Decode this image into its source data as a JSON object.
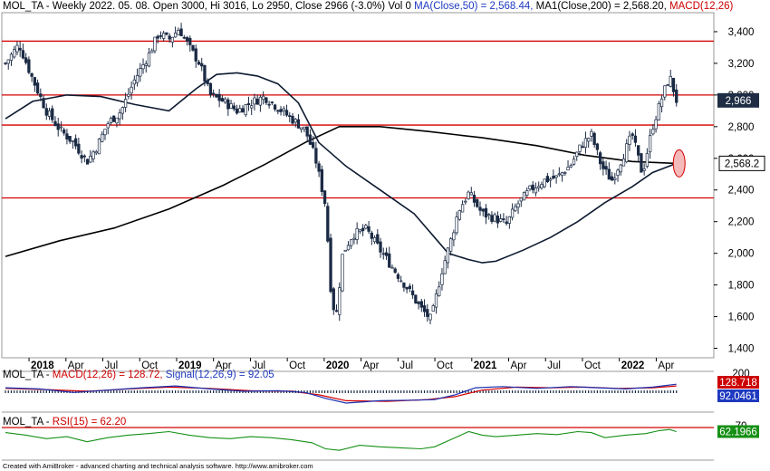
{
  "header": {
    "symbol": "MOL_TA",
    "info": " - Weekly 2022. 05. 08. Open 3000, Hi 3016, Lo 2950, Close 2966 (-3.0%) Vol 0 ",
    "ma50": "MA(Close,50) = 2,568.44, ",
    "ma200": "MA1(Close,200) = 2,568.20, ",
    "macd": "MACD(12,26)"
  },
  "colors": {
    "candle": "#1b2a44",
    "ma50": "#0d1a30",
    "ma200": "#000000",
    "hline": "#d40000",
    "macd_line": "#1a2fb0",
    "signal_line": "#d40000",
    "rsi_line": "#159015",
    "label_dark": "#1e2d44",
    "label_red": "#cc0000",
    "label_blue": "#1f3ac0",
    "label_green": "#159015",
    "ellipse_fill": "#f4b9b9",
    "ellipse_stroke": "#d40000"
  },
  "macd_panel": {
    "symbol": "MOL_TA",
    "macd_label": "MACD(12,26) = 128.72, ",
    "signal_label": "Signal(12,26,9) = 92.05",
    "macd_value": "128.718",
    "signal_value": "92.0461",
    "axis_top": "200"
  },
  "rsi_panel": {
    "symbol": "MOL_TA",
    "rsi_label": "RSI(15) = 62.20",
    "rsi_value": "62.1966",
    "axis_top": "70"
  },
  "footer": "Created with AmiBroker - advanced charting and technical analysis software. http://www.amibroker.com",
  "chart_data": {
    "type": "candlestick",
    "title": "MOL_TA - Weekly 2022. 05. 08.",
    "ylim": [
      1340,
      3520
    ],
    "y_ticks": [
      "1,400",
      "1,600",
      "1,800",
      "2,000",
      "2,200",
      "2,400",
      "2,600",
      "2,800",
      "3,000",
      "3,200",
      "3,400"
    ],
    "y_tick_values": [
      1400,
      1600,
      1800,
      2000,
      2200,
      2400,
      2600,
      2800,
      3000,
      3200,
      3400
    ],
    "x_ticks": [
      "2018",
      "Apr",
      "Jul",
      "Oct",
      "2019",
      "Apr",
      "Jul",
      "Oct",
      "2020",
      "Apr",
      "Jul",
      "Oct",
      "2021",
      "Apr",
      "Jul",
      "Oct",
      "2022",
      "Apr"
    ],
    "x_tick_bold": [
      true,
      false,
      false,
      false,
      true,
      false,
      false,
      false,
      true,
      false,
      false,
      false,
      true,
      false,
      false,
      false,
      true,
      false
    ],
    "horizontal_levels": [
      3340,
      3000,
      2810,
      2350
    ],
    "last_close": "2,966",
    "last_close_value": 2966,
    "ma_value_label": "2,568.2",
    "ma_value": 2568,
    "price_path": [
      [
        0,
        3200
      ],
      [
        0.02,
        3320
      ],
      [
        0.04,
        3100
      ],
      [
        0.06,
        2900
      ],
      [
        0.08,
        2780
      ],
      [
        0.1,
        2700
      ],
      [
        0.12,
        2580
      ],
      [
        0.135,
        2680
      ],
      [
        0.15,
        2820
      ],
      [
        0.17,
        2900
      ],
      [
        0.19,
        3100
      ],
      [
        0.21,
        3250
      ],
      [
        0.225,
        3390
      ],
      [
        0.24,
        3350
      ],
      [
        0.255,
        3420
      ],
      [
        0.27,
        3300
      ],
      [
        0.285,
        3200
      ],
      [
        0.3,
        3000
      ],
      [
        0.32,
        2960
      ],
      [
        0.34,
        2900
      ],
      [
        0.36,
        2950
      ],
      [
        0.38,
        2990
      ],
      [
        0.4,
        2920
      ],
      [
        0.42,
        2850
      ],
      [
        0.44,
        2780
      ],
      [
        0.455,
        2600
      ],
      [
        0.47,
        2300
      ],
      [
        0.478,
        1750
      ],
      [
        0.485,
        1580
      ],
      [
        0.495,
        2000
      ],
      [
        0.51,
        2120
      ],
      [
        0.53,
        2150
      ],
      [
        0.55,
        2020
      ],
      [
        0.57,
        1900
      ],
      [
        0.59,
        1780
      ],
      [
        0.61,
        1650
      ],
      [
        0.625,
        1580
      ],
      [
        0.64,
        1880
      ],
      [
        0.655,
        2100
      ],
      [
        0.665,
        2270
      ],
      [
        0.68,
        2380
      ],
      [
        0.7,
        2250
      ],
      [
        0.72,
        2220
      ],
      [
        0.735,
        2180
      ],
      [
        0.75,
        2300
      ],
      [
        0.77,
        2400
      ],
      [
        0.79,
        2460
      ],
      [
        0.81,
        2480
      ],
      [
        0.83,
        2560
      ],
      [
        0.845,
        2680
      ],
      [
        0.86,
        2750
      ],
      [
        0.875,
        2550
      ],
      [
        0.89,
        2460
      ],
      [
        0.905,
        2600
      ],
      [
        0.92,
        2750
      ],
      [
        0.935,
        2500
      ],
      [
        0.95,
        2800
      ],
      [
        0.965,
        3000
      ],
      [
        0.975,
        3120
      ],
      [
        0.985,
        2966
      ]
    ],
    "ma50_path": [
      [
        0,
        2850
      ],
      [
        0.04,
        2960
      ],
      [
        0.09,
        3000
      ],
      [
        0.14,
        2990
      ],
      [
        0.19,
        2940
      ],
      [
        0.24,
        2900
      ],
      [
        0.28,
        3040
      ],
      [
        0.31,
        3130
      ],
      [
        0.34,
        3140
      ],
      [
        0.37,
        3120
      ],
      [
        0.4,
        3070
      ],
      [
        0.43,
        2950
      ],
      [
        0.46,
        2700
      ],
      [
        0.5,
        2550
      ],
      [
        0.55,
        2400
      ],
      [
        0.6,
        2250
      ],
      [
        0.63,
        2100
      ],
      [
        0.65,
        2000
      ],
      [
        0.68,
        1960
      ],
      [
        0.7,
        1940
      ],
      [
        0.72,
        1950
      ],
      [
        0.76,
        2020
      ],
      [
        0.8,
        2100
      ],
      [
        0.84,
        2200
      ],
      [
        0.88,
        2320
      ],
      [
        0.92,
        2420
      ],
      [
        0.95,
        2510
      ],
      [
        0.985,
        2568
      ]
    ],
    "ma200_path": [
      [
        0,
        1980
      ],
      [
        0.08,
        2080
      ],
      [
        0.16,
        2160
      ],
      [
        0.24,
        2280
      ],
      [
        0.32,
        2430
      ],
      [
        0.38,
        2560
      ],
      [
        0.44,
        2700
      ],
      [
        0.49,
        2800
      ],
      [
        0.55,
        2800
      ],
      [
        0.62,
        2770
      ],
      [
        0.7,
        2730
      ],
      [
        0.78,
        2680
      ],
      [
        0.85,
        2620
      ],
      [
        0.92,
        2580
      ],
      [
        0.985,
        2568
      ]
    ],
    "macd_path": [
      [
        0,
        0.3
      ],
      [
        0.05,
        0.2
      ],
      [
        0.1,
        -0.1
      ],
      [
        0.15,
        0.1
      ],
      [
        0.2,
        0.3
      ],
      [
        0.25,
        0.45
      ],
      [
        0.3,
        0.2
      ],
      [
        0.35,
        0.0
      ],
      [
        0.4,
        0.05
      ],
      [
        0.44,
        -0.1
      ],
      [
        0.47,
        -0.6
      ],
      [
        0.5,
        -1.0
      ],
      [
        0.55,
        -0.8
      ],
      [
        0.6,
        -0.75
      ],
      [
        0.63,
        -0.7
      ],
      [
        0.66,
        -0.3
      ],
      [
        0.69,
        0.3
      ],
      [
        0.73,
        0.4
      ],
      [
        0.78,
        0.25
      ],
      [
        0.83,
        0.4
      ],
      [
        0.87,
        0.3
      ],
      [
        0.91,
        0.2
      ],
      [
        0.95,
        0.35
      ],
      [
        0.985,
        0.6
      ]
    ],
    "signal_path": [
      [
        0,
        0.25
      ],
      [
        0.06,
        0.15
      ],
      [
        0.12,
        0.0
      ],
      [
        0.18,
        0.2
      ],
      [
        0.24,
        0.35
      ],
      [
        0.3,
        0.25
      ],
      [
        0.36,
        0.05
      ],
      [
        0.42,
        0.0
      ],
      [
        0.46,
        -0.3
      ],
      [
        0.5,
        -0.8
      ],
      [
        0.56,
        -0.85
      ],
      [
        0.62,
        -0.7
      ],
      [
        0.66,
        -0.45
      ],
      [
        0.7,
        0.1
      ],
      [
        0.75,
        0.35
      ],
      [
        0.8,
        0.3
      ],
      [
        0.85,
        0.35
      ],
      [
        0.9,
        0.25
      ],
      [
        0.95,
        0.3
      ],
      [
        0.985,
        0.45
      ]
    ],
    "rsi_path": [
      [
        0,
        60
      ],
      [
        0.03,
        55
      ],
      [
        0.06,
        48
      ],
      [
        0.09,
        52
      ],
      [
        0.12,
        42
      ],
      [
        0.15,
        50
      ],
      [
        0.18,
        55
      ],
      [
        0.21,
        58
      ],
      [
        0.24,
        62
      ],
      [
        0.27,
        55
      ],
      [
        0.3,
        50
      ],
      [
        0.33,
        48
      ],
      [
        0.36,
        52
      ],
      [
        0.39,
        50
      ],
      [
        0.42,
        46
      ],
      [
        0.45,
        40
      ],
      [
        0.47,
        28
      ],
      [
        0.49,
        25
      ],
      [
        0.52,
        35
      ],
      [
        0.55,
        32
      ],
      [
        0.58,
        30
      ],
      [
        0.61,
        28
      ],
      [
        0.63,
        32
      ],
      [
        0.66,
        50
      ],
      [
        0.68,
        62
      ],
      [
        0.7,
        55
      ],
      [
        0.72,
        52
      ],
      [
        0.75,
        55
      ],
      [
        0.78,
        58
      ],
      [
        0.81,
        56
      ],
      [
        0.84,
        62
      ],
      [
        0.86,
        60
      ],
      [
        0.88,
        50
      ],
      [
        0.91,
        55
      ],
      [
        0.94,
        58
      ],
      [
        0.96,
        64
      ],
      [
        0.975,
        66
      ],
      [
        0.985,
        62
      ]
    ]
  }
}
